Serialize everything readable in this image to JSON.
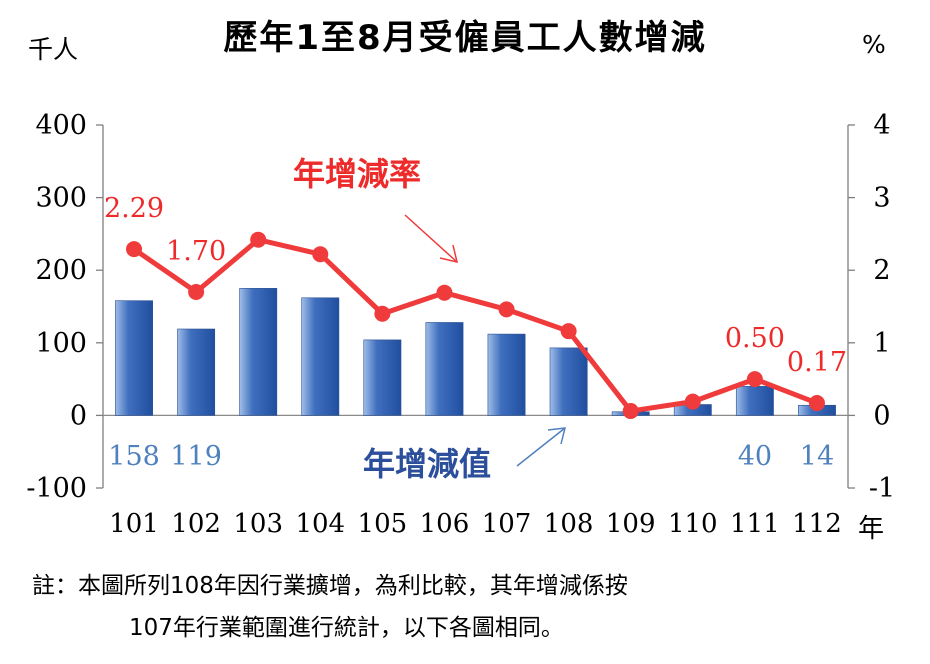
{
  "chart_data": {
    "type": "bar+line",
    "title": "歷年1至8月受僱員工人數增減",
    "left_axis_unit": "千人",
    "right_axis_unit": "%",
    "x_axis_unit": "年",
    "categories": [
      "101",
      "102",
      "103",
      "104",
      "105",
      "106",
      "107",
      "108",
      "109",
      "110",
      "111",
      "112"
    ],
    "left_axis": {
      "ylim": [
        -100,
        400
      ],
      "ticks": [
        "-100",
        "0",
        "100",
        "200",
        "300",
        "400"
      ]
    },
    "right_axis": {
      "ylim": [
        -1,
        4
      ],
      "ticks": [
        "-1",
        "0",
        "1",
        "2",
        "3",
        "4"
      ]
    },
    "series": [
      {
        "name": "年增減值",
        "type": "bar",
        "axis": "left",
        "values": [
          158,
          119,
          175,
          162,
          104,
          128,
          112,
          93,
          5,
          15,
          40,
          14
        ]
      },
      {
        "name": "年增減率",
        "type": "line",
        "axis": "right",
        "values": [
          2.29,
          1.7,
          2.42,
          2.22,
          1.4,
          1.69,
          1.46,
          1.16,
          0.06,
          0.19,
          0.5,
          0.17
        ]
      }
    ],
    "bar_labels": [
      {
        "index": 0,
        "text": "158"
      },
      {
        "index": 1,
        "text": "119"
      },
      {
        "index": 10,
        "text": "40"
      },
      {
        "index": 11,
        "text": "14"
      }
    ],
    "line_labels": [
      {
        "index": 0,
        "text": "2.29"
      },
      {
        "index": 1,
        "text": "1.70"
      },
      {
        "index": 10,
        "text": "0.50"
      },
      {
        "index": 11,
        "text": "0.17"
      }
    ],
    "colors": {
      "bar": "#2e5ba8",
      "line": "#ef3b3b",
      "bar_label": "#4f81bd",
      "line_label": "#ee2b2b",
      "annotation_bar": "#2c4f9c"
    }
  },
  "note": {
    "line1": "註：本圖所列108年因行業擴增，為利比較，其年增減係按",
    "line2": "107年行業範圍進行統計，以下各圖相同。"
  }
}
